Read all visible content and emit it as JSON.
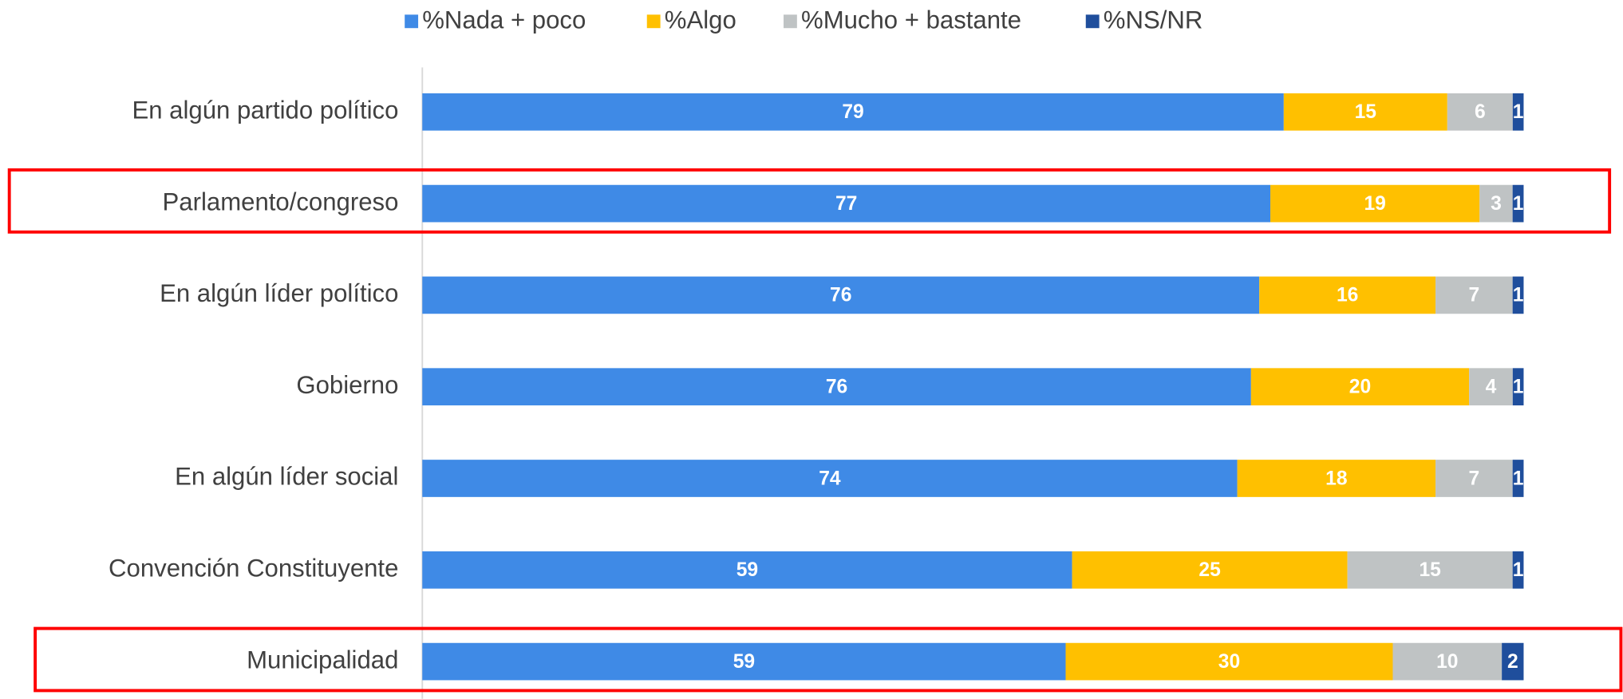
{
  "chart_data": {
    "type": "bar",
    "orientation": "horizontal",
    "stacking": "percent",
    "categories": [
      "En algún partido político",
      "Parlamento/congreso",
      "En algún líder político",
      "Gobierno",
      "En algún líder social",
      "Convención Constituyente",
      "Municipalidad"
    ],
    "series": [
      {
        "name": "%Nada + poco",
        "color": "#3f8ae6",
        "values": [
          79,
          77,
          76,
          76,
          74,
          59,
          59
        ]
      },
      {
        "name": "%Algo",
        "color": "#ffc000",
        "values": [
          15,
          19,
          16,
          20,
          18,
          25,
          30
        ]
      },
      {
        "name": "%Mucho + bastante",
        "color": "#bfc3c4",
        "values": [
          6,
          3,
          7,
          4,
          7,
          15,
          10
        ]
      },
      {
        "name": "%NS/NR",
        "color": "#1f4e9c",
        "values": [
          1,
          1,
          1,
          1,
          1,
          1,
          2
        ]
      }
    ],
    "legend": "top"
  }
}
